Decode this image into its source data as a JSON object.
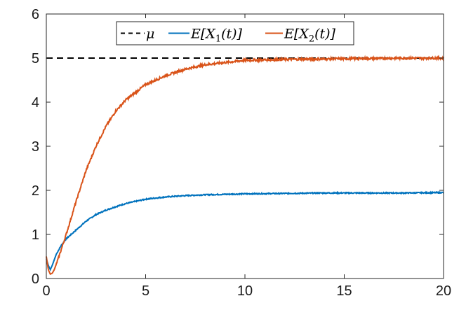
{
  "chart_data": {
    "type": "line",
    "title": "",
    "xlabel": "",
    "ylabel": "",
    "xlim": [
      0,
      20
    ],
    "ylim": [
      0,
      6
    ],
    "xticks": [
      "0",
      "5",
      "10",
      "15",
      "20"
    ],
    "yticks": [
      "0",
      "1",
      "2",
      "3",
      "4",
      "5",
      "6"
    ],
    "grid": false,
    "legend_position": "top",
    "series": [
      {
        "name": "μ",
        "style": "dashed",
        "color": "#000000",
        "x": [
          0,
          20
        ],
        "y": [
          5.0,
          5.0
        ]
      },
      {
        "name": "E[X1(t)]",
        "style": "solid",
        "color": "#0072BD",
        "x": [
          0,
          0.1,
          0.2,
          0.3,
          0.5,
          0.75,
          1.0,
          1.5,
          2.0,
          2.5,
          3.0,
          3.5,
          4.0,
          5.0,
          6.0,
          7.0,
          8.0,
          10.0,
          12.0,
          14.0,
          16.0,
          18.0,
          20.0
        ],
        "y": [
          0.45,
          0.3,
          0.2,
          0.3,
          0.55,
          0.75,
          0.9,
          1.1,
          1.3,
          1.45,
          1.55,
          1.63,
          1.7,
          1.8,
          1.85,
          1.88,
          1.9,
          1.92,
          1.93,
          1.94,
          1.94,
          1.94,
          1.95
        ]
      },
      {
        "name": "E[X2(t)]",
        "style": "solid",
        "color": "#D95319",
        "x": [
          0,
          0.1,
          0.2,
          0.3,
          0.4,
          0.6,
          1.0,
          1.5,
          2.0,
          2.5,
          3.0,
          3.5,
          4.0,
          5.0,
          6.0,
          7.0,
          8.0,
          9.0,
          10.0,
          12.0,
          14.0,
          16.0,
          18.0,
          20.0
        ],
        "y": [
          0.5,
          0.2,
          0.1,
          0.12,
          0.2,
          0.45,
          1.0,
          1.75,
          2.45,
          3.0,
          3.45,
          3.8,
          4.05,
          4.4,
          4.6,
          4.75,
          4.85,
          4.9,
          4.95,
          4.97,
          4.98,
          4.99,
          5.0,
          5.0
        ]
      }
    ],
    "legend": [
      {
        "label": "μ",
        "prefix": "",
        "sub": "",
        "suffix": ""
      },
      {
        "label": "E[X1(t)]",
        "prefix": "E[X",
        "sub": "1",
        "suffix": "(t)]"
      },
      {
        "label": "E[X2(t)]",
        "prefix": "E[X",
        "sub": "2",
        "suffix": "(t)]"
      }
    ]
  }
}
